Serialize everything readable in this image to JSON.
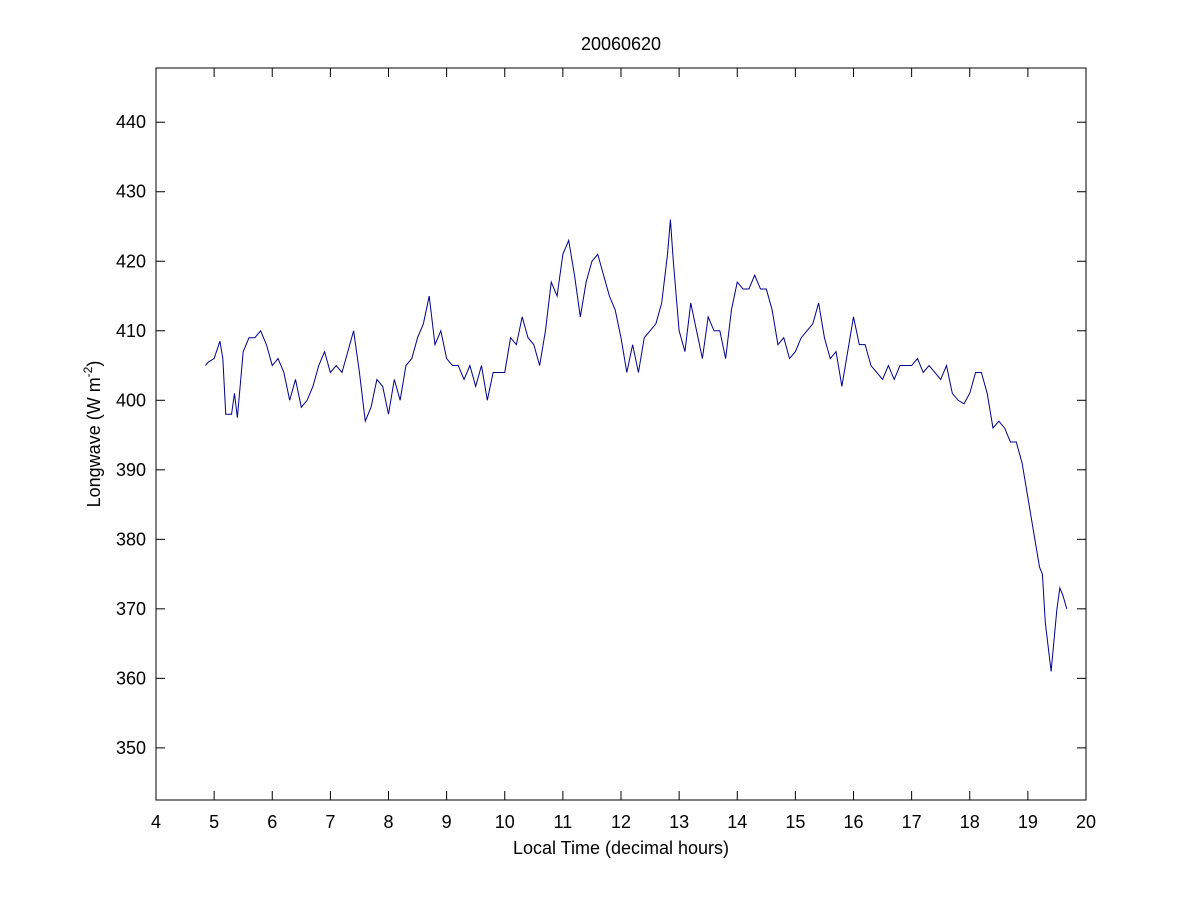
{
  "chart_data": {
    "type": "line",
    "title": "20060620",
    "xlabel": "Local Time (decimal hours)",
    "ylabel_parts": [
      "Longwave (W m",
      "-2",
      ")"
    ],
    "xlim": [
      4,
      20
    ],
    "xticks": [
      4,
      5,
      6,
      7,
      8,
      9,
      10,
      11,
      12,
      13,
      14,
      15,
      16,
      17,
      18,
      19,
      20
    ],
    "ylim": [
      342.5,
      447.8
    ],
    "yticks": [
      350,
      360,
      370,
      380,
      390,
      400,
      410,
      420,
      430,
      440
    ],
    "series": [
      {
        "color": "#00008b",
        "x": [
          4.85,
          4.9,
          5.0,
          5.1,
          5.15,
          5.2,
          5.3,
          5.35,
          5.4,
          5.5,
          5.6,
          5.7,
          5.8,
          5.9,
          6.0,
          6.1,
          6.2,
          6.3,
          6.4,
          6.5,
          6.6,
          6.7,
          6.8,
          6.9,
          7.0,
          7.1,
          7.2,
          7.3,
          7.4,
          7.5,
          7.6,
          7.7,
          7.8,
          7.9,
          8.0,
          8.1,
          8.2,
          8.3,
          8.4,
          8.5,
          8.6,
          8.7,
          8.8,
          8.9,
          9.0,
          9.1,
          9.2,
          9.3,
          9.4,
          9.5,
          9.6,
          9.7,
          9.8,
          9.9,
          10.0,
          10.1,
          10.2,
          10.3,
          10.4,
          10.5,
          10.6,
          10.7,
          10.8,
          10.9,
          11.0,
          11.1,
          11.2,
          11.3,
          11.4,
          11.5,
          11.6,
          11.7,
          11.8,
          11.9,
          12.0,
          12.1,
          12.2,
          12.3,
          12.4,
          12.5,
          12.6,
          12.7,
          12.8,
          12.85,
          12.9,
          13.0,
          13.1,
          13.2,
          13.3,
          13.4,
          13.5,
          13.6,
          13.7,
          13.8,
          13.9,
          14.0,
          14.1,
          14.2,
          14.3,
          14.4,
          14.5,
          14.6,
          14.7,
          14.8,
          14.9,
          15.0,
          15.1,
          15.2,
          15.3,
          15.4,
          15.5,
          15.6,
          15.7,
          15.8,
          15.9,
          16.0,
          16.1,
          16.2,
          16.3,
          16.4,
          16.5,
          16.6,
          16.7,
          16.8,
          16.9,
          17.0,
          17.1,
          17.2,
          17.3,
          17.4,
          17.5,
          17.6,
          17.7,
          17.8,
          17.9,
          18.0,
          18.1,
          18.2,
          18.3,
          18.4,
          18.5,
          18.6,
          18.7,
          18.8,
          18.9,
          19.0,
          19.1,
          19.2,
          19.25,
          19.3,
          19.4,
          19.5,
          19.55,
          19.6,
          19.67
        ],
        "values": [
          405,
          405.5,
          406,
          408.5,
          406,
          398,
          398,
          401,
          397.5,
          407,
          409,
          409,
          410,
          408,
          405,
          406,
          404,
          400,
          403,
          399,
          400,
          402,
          405,
          407,
          404,
          405,
          404,
          407,
          410,
          404,
          397,
          399,
          403,
          402,
          398,
          403,
          400,
          405,
          406,
          409,
          411,
          415,
          408,
          410,
          406,
          405,
          405,
          403,
          405,
          402,
          405,
          400,
          404,
          404,
          404,
          409,
          408,
          412,
          409,
          408,
          405,
          410,
          417,
          415,
          421,
          423,
          418,
          412,
          417,
          420,
          421,
          418,
          415,
          413,
          409,
          404,
          408,
          404,
          409,
          410,
          411,
          414,
          421,
          426,
          420,
          410,
          407,
          414,
          410,
          406,
          412,
          410,
          410,
          406,
          413,
          417,
          416,
          416,
          418,
          416,
          416,
          413,
          408,
          409,
          406,
          407,
          409,
          410,
          411,
          414,
          409,
          406,
          407,
          402,
          407,
          412,
          408,
          408,
          405,
          404,
          403,
          405,
          403,
          405,
          405,
          405,
          406,
          404,
          405,
          404,
          403,
          405,
          401,
          400,
          399.5,
          401,
          404,
          404,
          401,
          396,
          397,
          396,
          394,
          394,
          391,
          386,
          381,
          376,
          375,
          368,
          361,
          370,
          373,
          372,
          370
        ]
      }
    ]
  }
}
